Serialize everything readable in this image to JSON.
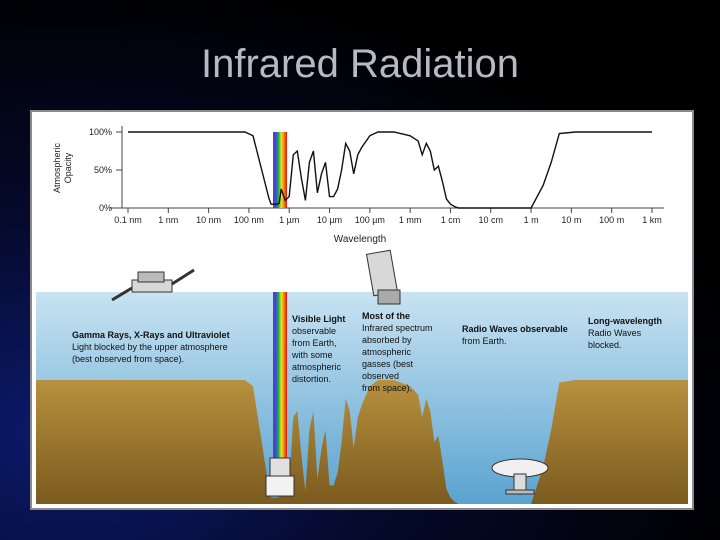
{
  "slide": {
    "title": "Infrared Radiation"
  },
  "chart_data": {
    "type": "line",
    "ylabel_lines": [
      "Atmospheric",
      "Opacity"
    ],
    "xlabel": "Wavelength",
    "y_ticks": [
      "100%",
      "50%",
      "0%"
    ],
    "x_ticks": [
      "0.1 nm",
      "1 nm",
      "10 nm",
      "100 nm",
      "1 µm",
      "10 µm",
      "100 µm",
      "1 mm",
      "1 cm",
      "10 cm",
      "1 m",
      "10 m",
      "100 m",
      "1 km"
    ],
    "x_log10_m": [
      -10,
      -9,
      -8,
      -7,
      -6,
      -5,
      -4,
      -3,
      -2,
      -1,
      0,
      1,
      2,
      3
    ],
    "ylim": [
      0,
      100
    ],
    "series": [
      {
        "x_log10_m": [
          -10,
          -7.1,
          -6.9,
          -6.5,
          -6.45,
          -6.3,
          -6.25,
          -6.2,
          -6.1,
          -6.0,
          -5.9,
          -5.8,
          -5.7,
          -5.6,
          -5.5,
          -5.4,
          -5.3,
          -5.2,
          -5.1,
          -5.0,
          -4.9,
          -4.8,
          -4.7,
          -4.6,
          -4.5,
          -4.4,
          -4.3,
          -4.2,
          -4.0,
          -3.8,
          -3.4,
          -3.0,
          -2.8,
          -2.7,
          -2.6,
          -2.5,
          -2.4,
          -2.3,
          -2.2,
          -2.1,
          -2.0,
          -1.9,
          -1.8,
          -1.6,
          -1.4,
          0.0,
          0.3,
          0.5,
          0.7,
          1.1,
          3.0
        ],
        "opacity": [
          100,
          100,
          95,
          12,
          5,
          5,
          6,
          25,
          10,
          15,
          70,
          75,
          40,
          10,
          60,
          75,
          20,
          45,
          60,
          15,
          15,
          25,
          50,
          85,
          75,
          45,
          70,
          80,
          95,
          100,
          100,
          95,
          88,
          70,
          85,
          75,
          50,
          55,
          35,
          12,
          5,
          2,
          0,
          0,
          0,
          0,
          30,
          60,
          98,
          100,
          100
        ]
      }
    ],
    "annotations": [
      [
        "Gamma Rays, X-Rays and Ultraviolet",
        "Light blocked by the upper atmosphere",
        "(best observed from space)."
      ],
      [
        "Visible Light",
        "observable",
        "from Earth,",
        "with some",
        "atmospheric",
        "distortion."
      ],
      [
        "Most of the",
        "Infrared spectrum",
        "absorbed by",
        "atmospheric",
        "gasses (best",
        "observed",
        "from space)."
      ],
      [
        "Radio Waves observable",
        "from Earth."
      ],
      [
        "Long-wavelength",
        "Radio Waves",
        "blocked."
      ]
    ]
  }
}
